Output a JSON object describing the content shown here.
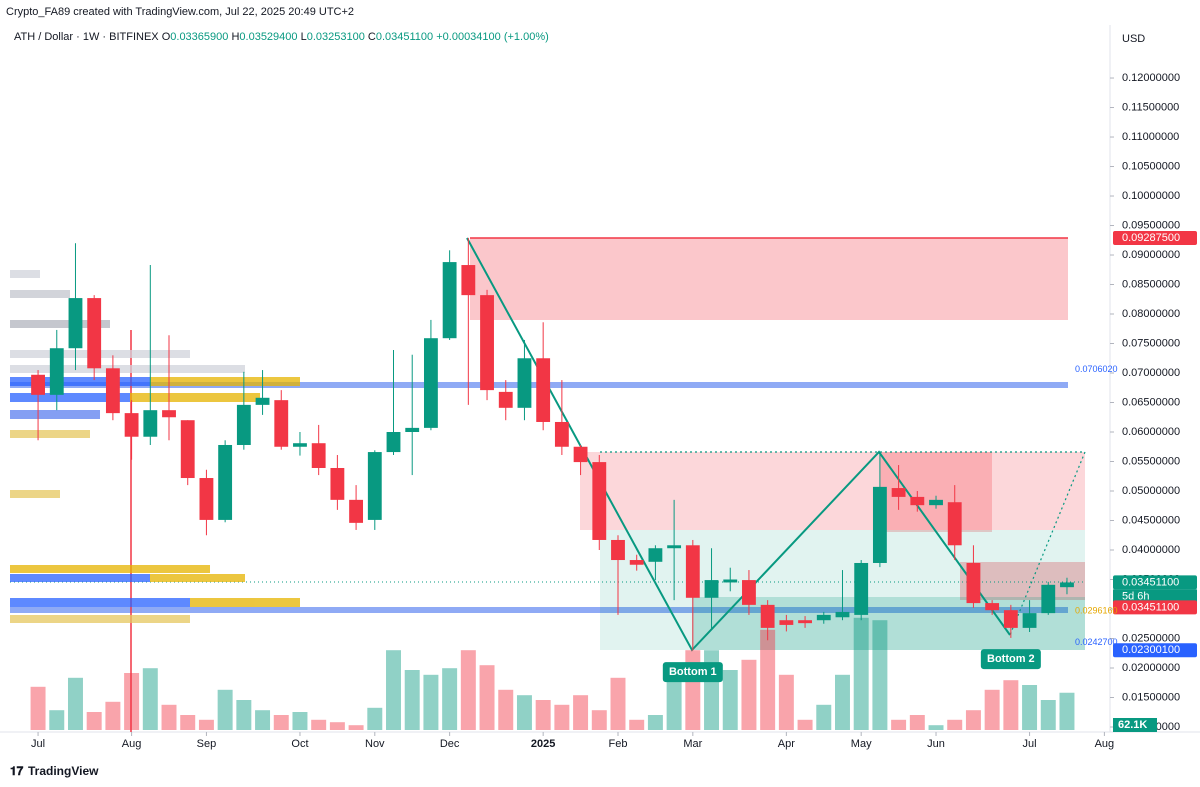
{
  "chart_data": {
    "type": "candlestick",
    "credit": "Crypto_FA89 created with TradingView.com, Jul 22, 2025 20:49 UTC+2",
    "symbol": "ATH / Dollar · 1W · BITFINEX",
    "legend_ohlc": [
      {
        "label": "O",
        "value": "0.03365900"
      },
      {
        "label": "H",
        "value": "0.03529400"
      },
      {
        "label": "L",
        "value": "0.03253100"
      },
      {
        "label": "C",
        "value": "0.03451100"
      }
    ],
    "change": "+0.00034100 (+1.00%)",
    "currency": "USD",
    "brand": "TradingView",
    "up_color": "#089981",
    "down_color": "#f23645",
    "open": [
      0.0697,
      0.0663,
      0.0742,
      0.0827,
      0.0708,
      0.0632,
      0.0592,
      0.0637,
      0.062,
      0.0522,
      0.0451,
      0.0578,
      0.0646,
      0.0654,
      0.0575,
      0.0581,
      0.0539,
      0.0485,
      0.0451,
      0.0566,
      0.06,
      0.0607,
      0.0759,
      0.0883,
      0.0832,
      0.0668,
      0.0641,
      0.0725,
      0.0617,
      0.0575,
      0.0549,
      0.0417,
      0.0383,
      0.038,
      0.0403,
      0.0408,
      0.0319,
      0.0345,
      0.0349,
      0.0307,
      0.0281,
      0.0281,
      0.0281,
      0.0286,
      0.029,
      0.0378,
      0.0505,
      0.049,
      0.0476,
      0.0481,
      0.0378,
      0.031,
      0.0298,
      0.0268,
      0.0293,
      0.0337
    ],
    "high": [
      0.0705,
      0.0773,
      0.092,
      0.0832,
      0.073,
      0.0654,
      0.0883,
      0.0764,
      0.062,
      0.0536,
      0.0586,
      0.0702,
      0.0705,
      0.0671,
      0.06,
      0.0612,
      0.0561,
      0.051,
      0.0569,
      0.0739,
      0.0731,
      0.079,
      0.0908,
      0.0929,
      0.0841,
      0.0688,
      0.0756,
      0.0786,
      0.0688,
      0.0578,
      0.0561,
      0.0425,
      0.0392,
      0.0408,
      0.0485,
      0.0417,
      0.0403,
      0.037,
      0.0366,
      0.0315,
      0.029,
      0.0288,
      0.0295,
      0.0366,
      0.0383,
      0.0566,
      0.0544,
      0.05,
      0.0492,
      0.051,
      0.0408,
      0.0315,
      0.0307,
      0.0315,
      0.0346,
      0.0353
    ],
    "low": [
      0.0586,
      0.0637,
      0.0705,
      0.0688,
      0.062,
      0.0553,
      0.0578,
      0.0586,
      0.051,
      0.0425,
      0.0447,
      0.057,
      0.0629,
      0.057,
      0.056,
      0.0527,
      0.0468,
      0.0434,
      0.0434,
      0.0561,
      0.0527,
      0.0603,
      0.0756,
      0.0646,
      0.0654,
      0.062,
      0.062,
      0.0603,
      0.0561,
      0.0527,
      0.04,
      0.029,
      0.0365,
      0.0349,
      0.0315,
      0.023,
      0.0264,
      0.033,
      0.029,
      0.0247,
      0.0262,
      0.0268,
      0.0275,
      0.0281,
      0.0281,
      0.0371,
      0.0468,
      0.0465,
      0.047,
      0.0383,
      0.0302,
      0.029,
      0.0251,
      0.0261,
      0.029,
      0.0325
    ],
    "close": [
      0.0663,
      0.0742,
      0.0827,
      0.0708,
      0.0632,
      0.0592,
      0.0637,
      0.0625,
      0.0522,
      0.0451,
      0.0578,
      0.0646,
      0.0658,
      0.0575,
      0.0581,
      0.0539,
      0.0485,
      0.0446,
      0.0566,
      0.06,
      0.0607,
      0.0759,
      0.0888,
      0.0832,
      0.0671,
      0.0641,
      0.0725,
      0.0617,
      0.0575,
      0.0549,
      0.0417,
      0.0383,
      0.0375,
      0.0403,
      0.0408,
      0.0319,
      0.0349,
      0.035,
      0.0307,
      0.0268,
      0.0273,
      0.0276,
      0.029,
      0.0295,
      0.0378,
      0.0507,
      0.049,
      0.0476,
      0.0485,
      0.0408,
      0.031,
      0.0298,
      0.0268,
      0.0293,
      0.0341,
      0.0345
    ],
    "volume_unit": "K",
    "volume": [
      72,
      33,
      87,
      30,
      47,
      95,
      103,
      42,
      25,
      17,
      67,
      50,
      33,
      25,
      30,
      17,
      13,
      8,
      37,
      133,
      100,
      92,
      103,
      133,
      108,
      67,
      58,
      50,
      42,
      58,
      33,
      87,
      17,
      25,
      83,
      133,
      133,
      100,
      117,
      167,
      92,
      17,
      42,
      92,
      187,
      183,
      17,
      25,
      8,
      17,
      33,
      67,
      83,
      75,
      50,
      62.1
    ],
    "volume_lim": [
      0,
      400
    ],
    "volume_label": "62.1K",
    "xlim": [
      -1.5,
      57.3
    ],
    "xticks": [
      {
        "value": 0,
        "label": "Jul"
      },
      {
        "value": 5,
        "label": "Aug"
      },
      {
        "value": 9,
        "label": "Sep"
      },
      {
        "value": 14,
        "label": "Oct"
      },
      {
        "value": 18,
        "label": "Nov"
      },
      {
        "value": 22,
        "label": "Dec"
      },
      {
        "value": 27,
        "label": "2025"
      },
      {
        "value": 31,
        "label": "Feb"
      },
      {
        "value": 35,
        "label": "Mar"
      },
      {
        "value": 40,
        "label": "Apr"
      },
      {
        "value": 44,
        "label": "May"
      },
      {
        "value": 48,
        "label": "Jun"
      },
      {
        "value": 53,
        "label": "Jul"
      },
      {
        "value": 57,
        "label": "Aug"
      }
    ],
    "ylim": [
      0.00949,
      0.12475
    ],
    "yticks": [
      {
        "value": 0.12,
        "label": "0.12000000"
      },
      {
        "value": 0.115,
        "label": "0.11500000"
      },
      {
        "value": 0.11,
        "label": "0.11000000"
      },
      {
        "value": 0.105,
        "label": "0.10500000"
      },
      {
        "value": 0.1,
        "label": "0.10000000"
      },
      {
        "value": 0.095,
        "label": "0.09500000"
      },
      {
        "value": 0.09,
        "label": "0.09000000"
      },
      {
        "value": 0.085,
        "label": "0.08500000"
      },
      {
        "value": 0.08,
        "label": "0.08000000"
      },
      {
        "value": 0.075,
        "label": "0.07500000"
      },
      {
        "value": 0.07,
        "label": "0.07000000"
      },
      {
        "value": 0.065,
        "label": "0.06500000"
      },
      {
        "value": 0.06,
        "label": "0.06000000"
      },
      {
        "value": 0.055,
        "label": "0.05500000"
      },
      {
        "value": 0.05,
        "label": "0.05000000"
      },
      {
        "value": 0.045,
        "label": "0.04500000"
      },
      {
        "value": 0.04,
        "label": "0.04000000"
      },
      {
        "value": 0.035,
        "label": "0.03500000"
      },
      {
        "value": 0.03,
        "label": "0.03000000"
      },
      {
        "value": 0.025,
        "label": "0.02500000"
      },
      {
        "value": 0.02,
        "label": "0.02000000"
      },
      {
        "value": 0.015,
        "label": "0.01500000"
      },
      {
        "value": 0.01,
        "label": "0.01000000"
      }
    ],
    "price_labels": [
      {
        "value": 0.092875,
        "label": "0.09287500",
        "color": "#f23645",
        "filled": true
      },
      {
        "value": 0.070602,
        "label": "0.0706020",
        "color": "#2962ff",
        "filled": false
      },
      {
        "value": 0.034511,
        "label": "0.03451100",
        "color": "#089981",
        "filled": true
      },
      {
        "value": 0.034511,
        "label": "0.03451100",
        "color": "#f23645",
        "filled": true
      },
      {
        "value": 0.029616,
        "label": "0.0296160",
        "color": "#e6a700",
        "filled": false
      },
      {
        "value": 0.02427,
        "label": "0.0242700",
        "color": "#2962ff",
        "filled": false
      },
      {
        "value": 0.023001,
        "label": "0.02300100",
        "color": "#2962ff",
        "filled": true
      }
    ],
    "countdown": "5d 6h",
    "annotations": [
      {
        "text": "Bottom 1",
        "x": 35,
        "y": 0.0193
      },
      {
        "text": "Bottom 2",
        "x": 52,
        "y": 0.0215
      }
    ]
  }
}
